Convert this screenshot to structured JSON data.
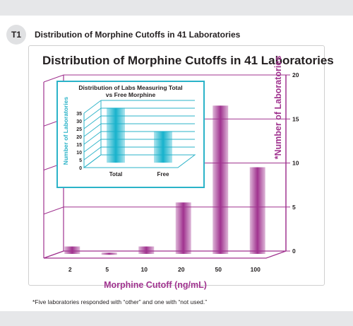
{
  "figure": {
    "badge": "T1",
    "caption": "Distribution of Morphine Cutoffs in 41 Laboratories",
    "footnote": "*Five laboratories responded with “other” and one with “not used.”"
  },
  "colors": {
    "main_bar": "#a0338f",
    "axis": "#a0338f",
    "inset_bar": "#17b2cc",
    "inset_frame": "#2bb3c8",
    "text": "#231f20",
    "band": "#e6e7e9"
  },
  "chart_data": [
    {
      "type": "bar",
      "title": "Distribution of Morphine Cutoffs in 41 Laboratories",
      "xlabel": "Morphine Cutoff (ng/mL)",
      "ylabel": "*Number of Laboratories",
      "categories": [
        "2",
        "5",
        "10",
        "20",
        "50",
        "100"
      ],
      "values": [
        1,
        0.3,
        1,
        6,
        17,
        10
      ],
      "yticks": [
        0,
        5,
        10,
        15,
        20
      ],
      "ylim": [
        0,
        20
      ],
      "grid": true,
      "y_axis_side": "right",
      "style": "3d"
    },
    {
      "type": "bar",
      "title": "Distribution of Labs Measuring Total vs Free Morphine",
      "xlabel": "",
      "ylabel": "Number of Laboratories",
      "categories": [
        "Total",
        "Free"
      ],
      "values": [
        33,
        18
      ],
      "yticks": [
        0,
        5,
        10,
        15,
        20,
        25,
        30,
        35
      ],
      "ylim": [
        0,
        35
      ],
      "grid": true,
      "style": "3d"
    }
  ]
}
